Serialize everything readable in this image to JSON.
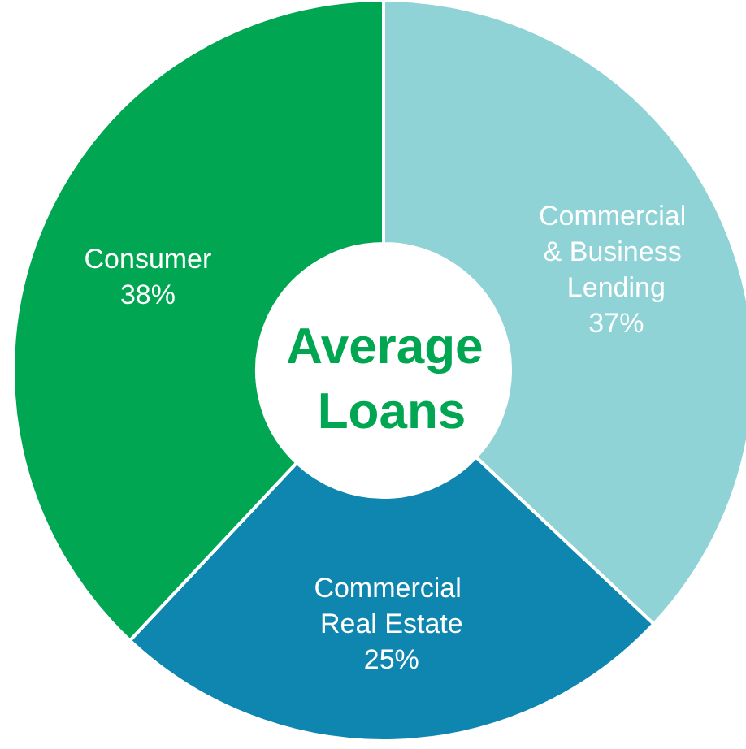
{
  "chart_data": {
    "type": "donut",
    "title": "Average Loans",
    "categories": [
      "Commercial & Business Lending",
      "Commercial Real Estate",
      "Consumer"
    ],
    "values": [
      37,
      25,
      38
    ],
    "value_labels": [
      "37%",
      "25%",
      "38%"
    ],
    "colors": [
      "#8fd3d6",
      "#0f86b0",
      "#00a651"
    ],
    "legend": false
  }
}
